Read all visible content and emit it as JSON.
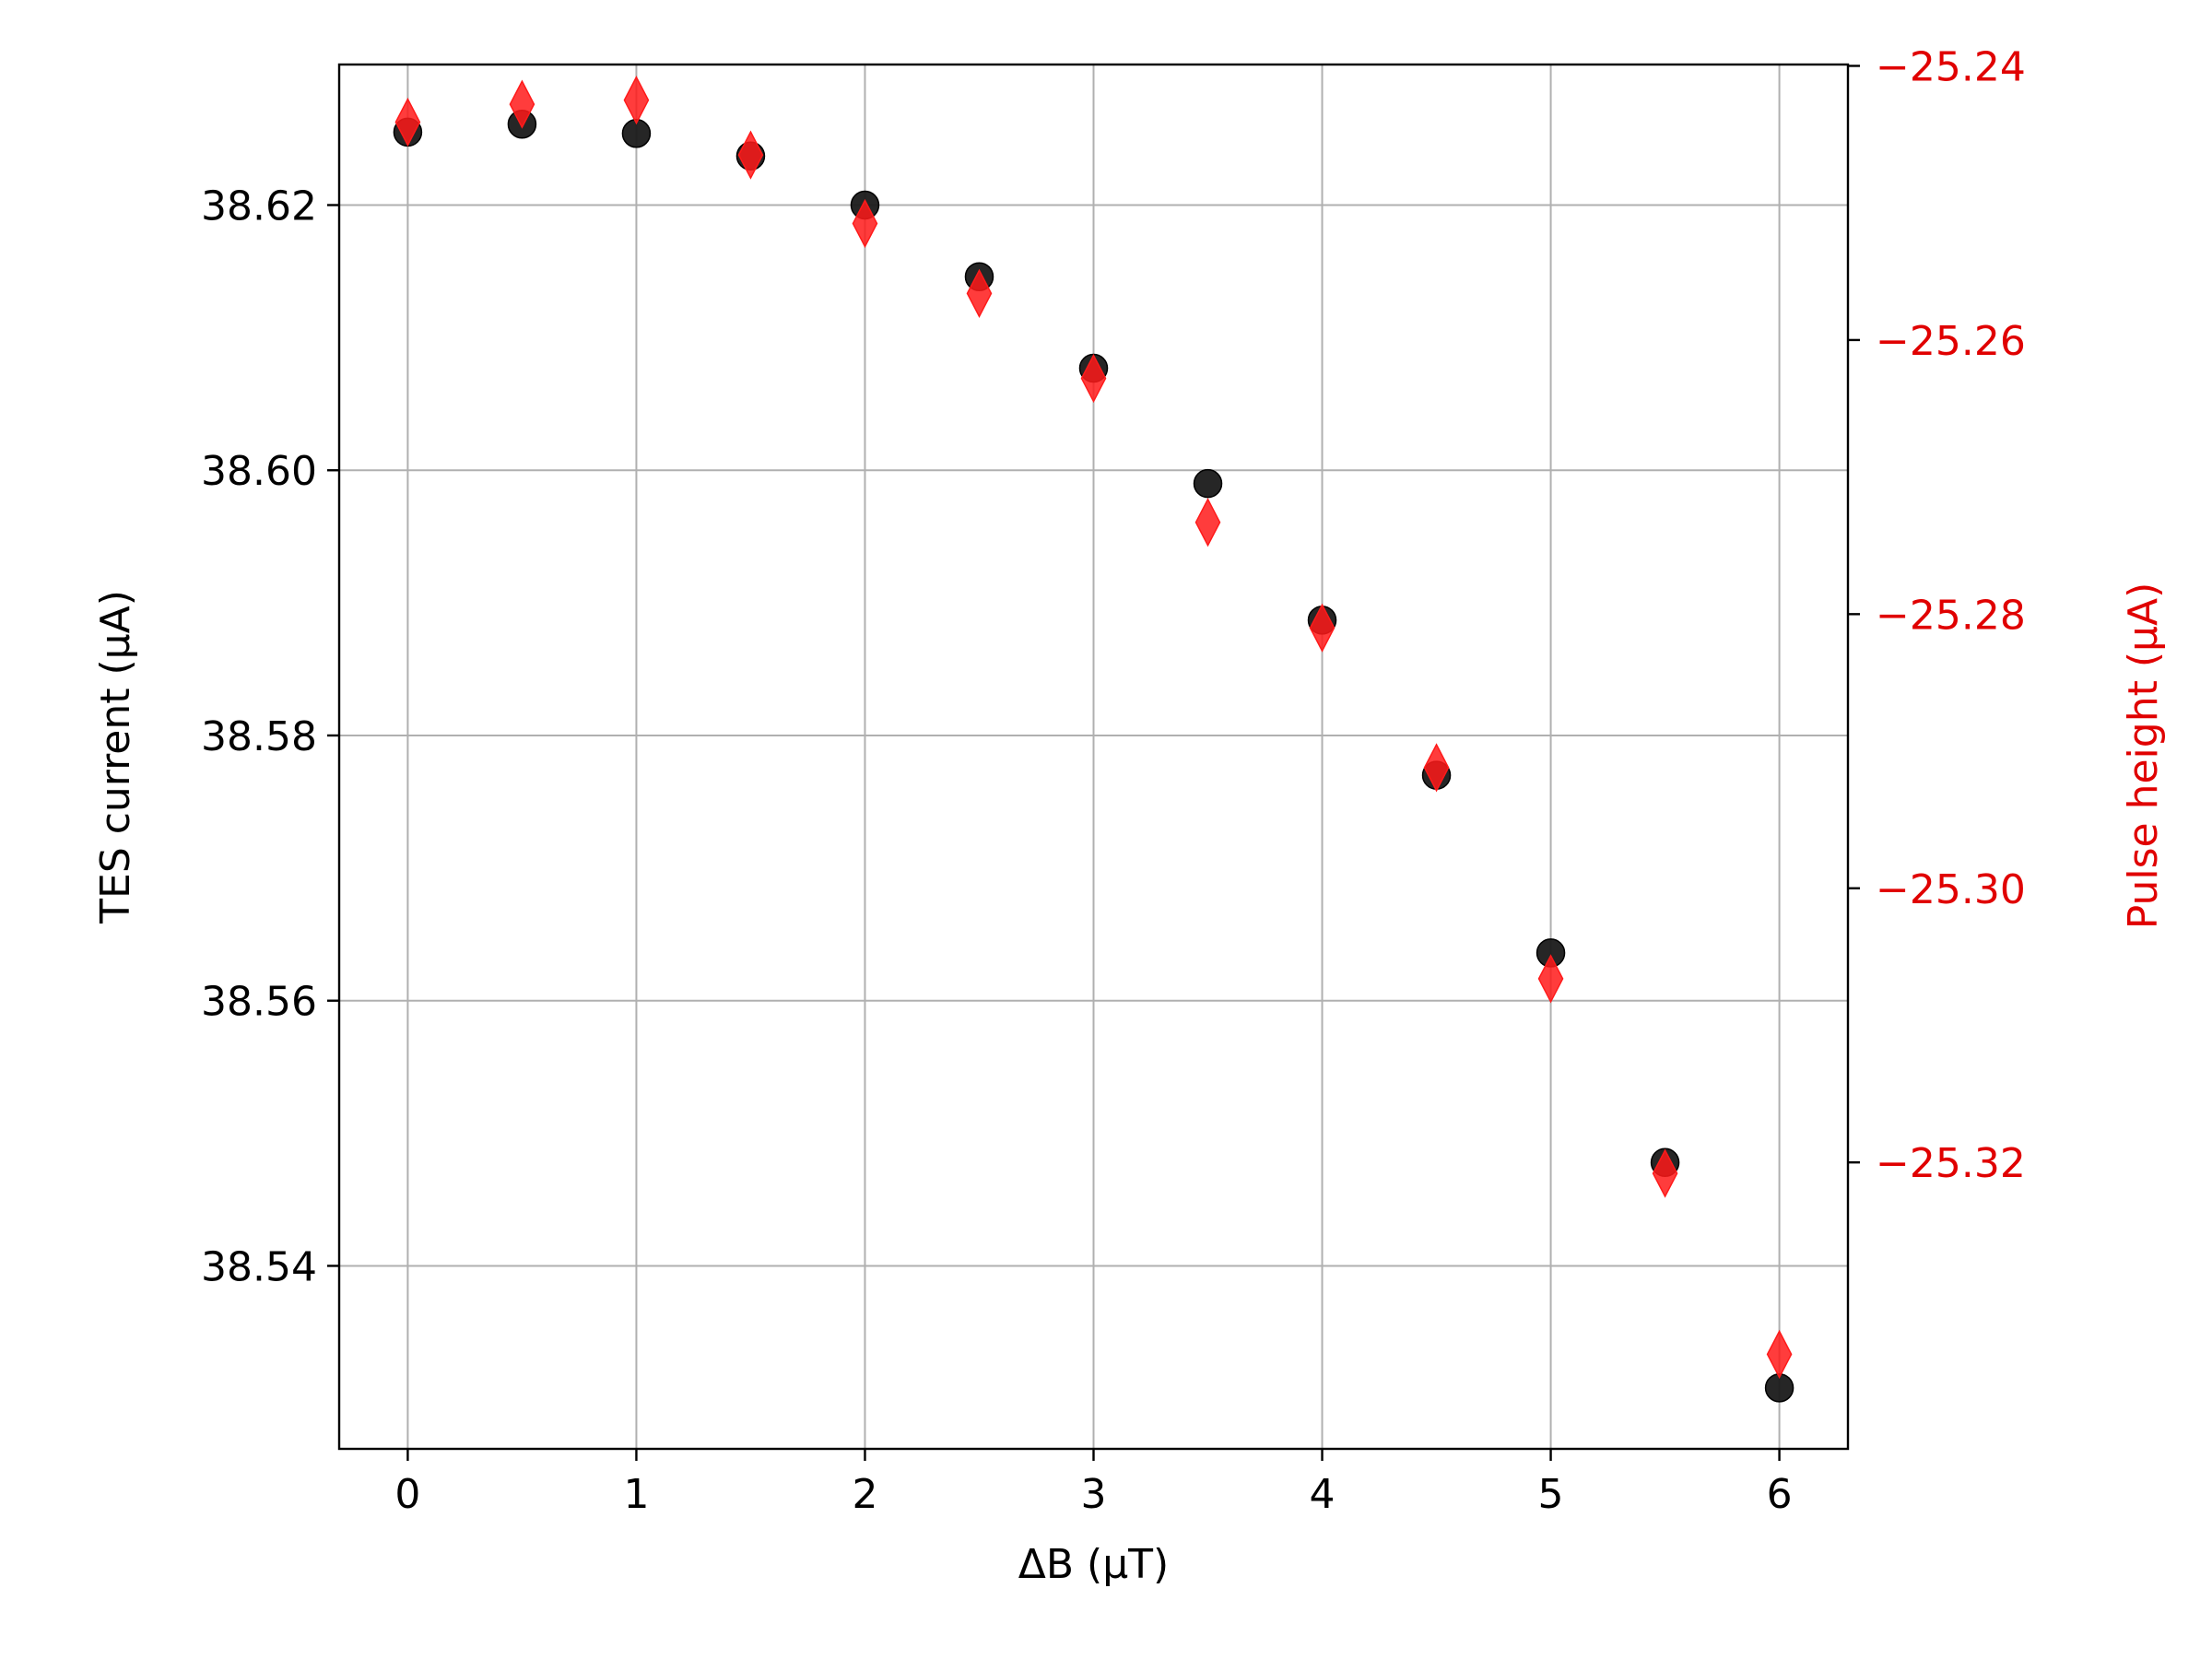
{
  "chart_data": {
    "type": "scatter",
    "title": "",
    "xlabel": "ΔB (μT)",
    "ylabel": "TES current (μA)",
    "y2label": "Pulse height (μA)",
    "xlim": [
      -0.3,
      6.3
    ],
    "ylim": [
      38.5262,
      38.6306
    ],
    "y2lim": [
      -25.3409,
      -25.2399
    ],
    "grid": true,
    "legend": "none",
    "x_ticks": [
      0,
      1,
      2,
      3,
      4,
      5,
      6
    ],
    "x_tick_labels": [
      "0",
      "1",
      "2",
      "3",
      "4",
      "5",
      "6"
    ],
    "y_ticks": [
      38.54,
      38.56,
      38.58,
      38.6,
      38.62
    ],
    "y_tick_labels": [
      "38.54",
      "38.56",
      "38.58",
      "38.60",
      "38.62"
    ],
    "y2_ticks": [
      -25.32,
      -25.3,
      -25.28,
      -25.26,
      -25.24
    ],
    "y2_tick_labels": [
      "−25.32",
      "−25.30",
      "−25.28",
      "−25.26",
      "−25.24"
    ],
    "series": [
      {
        "axis": "left",
        "marker": "circle",
        "color": "#1a1a1a",
        "x": [
          0,
          0.5,
          1,
          1.5,
          2,
          2.5,
          3,
          3.5,
          4,
          4.5,
          5,
          5.5,
          6
        ],
        "y": [
          38.6255,
          38.6261,
          38.6254,
          38.6237,
          38.62,
          38.6146,
          38.6077,
          38.599,
          38.5887,
          38.577,
          38.5636,
          38.5478,
          38.5308
        ]
      },
      {
        "axis": "right",
        "marker": "diamond",
        "color": "#ff1a1a",
        "x": [
          0,
          0.5,
          1,
          1.5,
          2,
          2.5,
          3,
          3.5,
          4,
          4.5,
          5,
          5.5,
          6
        ],
        "y": [
          -25.2441,
          -25.2428,
          -25.2425,
          -25.2465,
          -25.2515,
          -25.2566,
          -25.2628,
          -25.2733,
          -25.281,
          -25.2912,
          -25.3066,
          -25.3208,
          -25.334
        ]
      }
    ],
    "colors": {
      "left_axis": "#000000",
      "right_axis": "#e00000",
      "grid": "#b0b0b0"
    }
  }
}
